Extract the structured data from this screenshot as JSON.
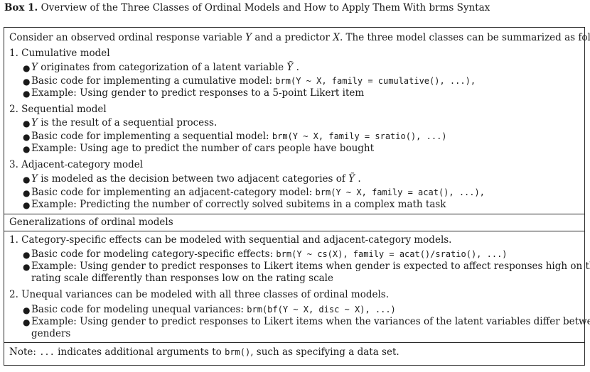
{
  "title": {
    "label": "Box 1.",
    "text": "Overview of the Three Classes of Ordinal Models and How to Apply Them With brms Syntax"
  },
  "intro": "Consider an observed ordinal response variable Y and a predictor X. The three model classes can be summarized as follows:",
  "models": [
    {
      "heading": "1. Cumulative model",
      "bullets": [
        "Y originates from categorization of a latent variable Ỹ .",
        "Basic code for implementing a cumulative model: brm(Y ~ X, family = cumulative(), ...),",
        "Example: Using gender to predict responses to a 5-point Likert item"
      ]
    },
    {
      "heading": "2. Sequential model",
      "bullets": [
        "Y is the result of a sequential process.",
        "Basic code for implementing a sequential model: brm(Y ~ X, family = sratio(), ...)",
        "Example: Using age to predict the number of cars people have bought"
      ]
    },
    {
      "heading": "3. Adjacent-category model",
      "bullets": [
        "Y is modeled as the decision between two adjacent categories of Ỹ .",
        "Basic code for implementing an adjacent-category model: brm(Y ~ X, family = acat(), ...),",
        "Example: Predicting the number of correctly solved subitems in a complex math task"
      ]
    }
  ],
  "generalizations": {
    "heading": "Generalizations of ordinal models",
    "items": [
      {
        "heading": "1. Category-specific effects can be modeled with sequential and adjacent-category models.",
        "bullets": [
          "Basic code for modeling category-specific effects: brm(Y ~ cs(X), family = acat()/sratio(), ...)",
          "Example: Using gender to predict responses to Likert items when gender is expected to affect responses high on the rating scale differently than responses low on the rating scale"
        ]
      },
      {
        "heading": "2. Unequal variances can be modeled with all three classes of ordinal models.",
        "bullets": [
          "Basic code for modeling unequal variances: brm(bf(Y ~ X, disc ~ X), ...)",
          "Example: Using gender to predict responses to Likert items when the variances of the latent variables differ between genders"
        ]
      }
    ]
  },
  "note": "Note: ... indicates additional arguments to brm(), such as specifying a data set."
}
